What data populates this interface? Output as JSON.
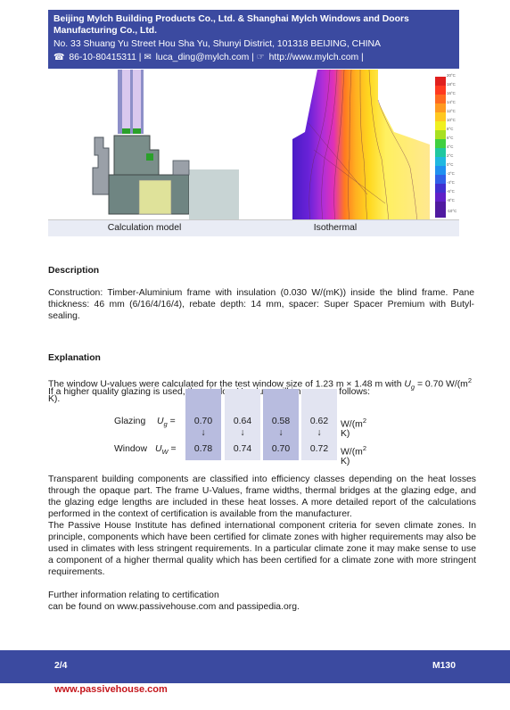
{
  "header": {
    "company": "Beijing Mylch Building Products Co., Ltd. & Shanghai Mylch Windows and Doors Manufacturing Co., Ltd.",
    "address": "No. 33 Shuang Yu Street Hou Sha Yu, Shunyi District, 101318 BEIJING, CHINA",
    "phone": "86-10-80415311",
    "email": "luca_ding@mylch.com",
    "web": "http://www.mylch.com",
    "separator": "|"
  },
  "figure": {
    "left_caption": "Calculation model",
    "right_caption": "Isothermal",
    "scale_labels": [
      "20°C",
      "18°C",
      "16°C",
      "14°C",
      "12°C",
      "10°C",
      "8°C",
      "6°C",
      "4°C",
      "2°C",
      "0°C",
      "-2°C",
      "-4°C",
      "-6°C",
      "-8°C",
      "-10°C"
    ]
  },
  "description": {
    "heading": "Description",
    "text": "Construction: Timber-Aluminium frame with insulation (0.030 W/(mK)) inside the blind frame. Pane thickness: 46 mm (6/16/4/16/4), rebate depth: 14 mm, spacer: Super Spacer Premium with Butyl-sealing."
  },
  "explanation": {
    "heading": "Explanation",
    "line1_a": "The window U-values were calculated for the test window size of 1.23 m × 1.48 m with ",
    "line1_sym": "U",
    "line1_sub": "g",
    "line1_b": " = 0.70 W/(m",
    "line1_sup": "2",
    "line1_c": " K).",
    "line2": "If a higher quality glazing is used, the window U-values will improve as follows:"
  },
  "u_table": {
    "glazing_label": "Glazing",
    "window_label": "Window",
    "ug_sym": "U",
    "ug_sub": "g",
    "uw_sym": "U",
    "uw_sub": "W",
    "eq": "=",
    "unit_a": "W/(m",
    "unit_sup": "2",
    "unit_b": " K)",
    "arrow": "↓",
    "glazing_values": [
      "0.70",
      "0.64",
      "0.58",
      "0.62"
    ],
    "window_values": [
      "0.78",
      "0.74",
      "0.70",
      "0.72"
    ]
  },
  "paragraph_1": "Transparent building components are classified into efficiency classes depending on the heat losses through the opaque part. The frame U-Values, frame widths, thermal bridges at the glazing edge, and the glazing edge lengths are included in these heat losses. A more detailed report of the calculations performed in the context of certification is available from the manufacturer.",
  "paragraph_2": "The Passive House Institute has defined international component criteria for seven climate zones. In principle, components which have been certified for climate zones with higher requirements may also be used in climates with less stringent requirements. In a particular climate zone it may make sense to use a component of a higher thermal quality which has been certified for a climate zone with more stringent requirements.",
  "further": {
    "line1": "Further information relating to certification",
    "line2": "can be found on www.passivehouse.com and passipedia.org."
  },
  "footer": {
    "page": "2/4",
    "code": "M130",
    "website": "www.passivehouse.com"
  }
}
